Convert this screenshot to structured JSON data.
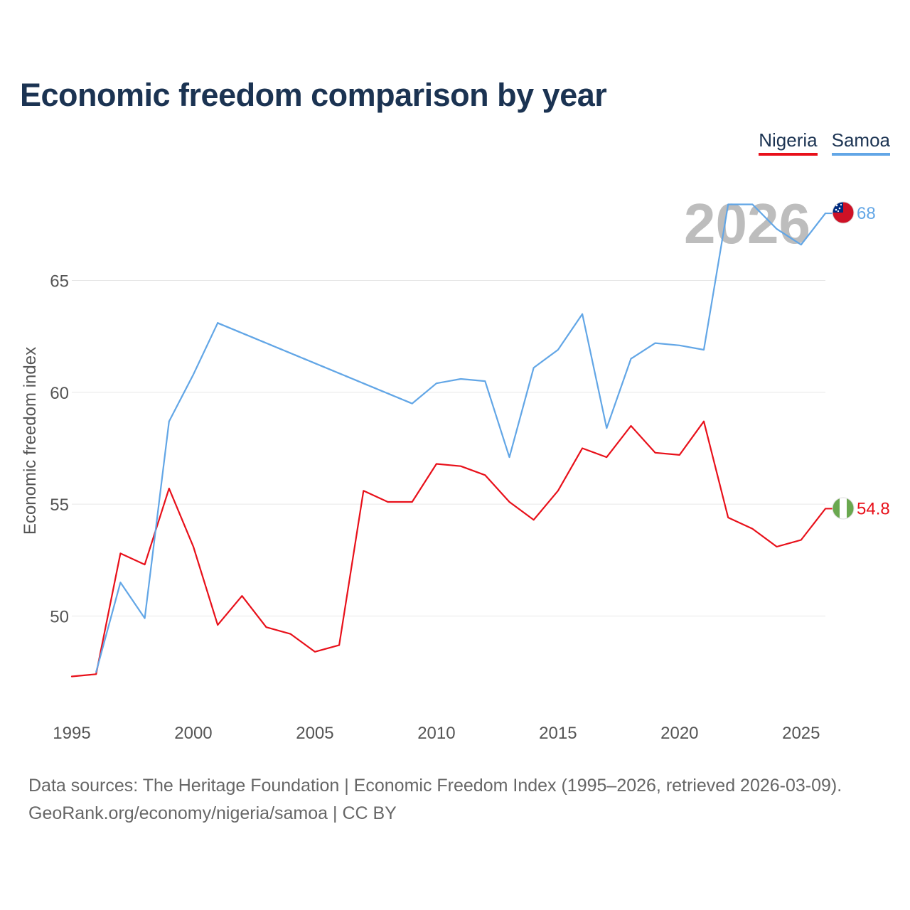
{
  "title": "Economic freedom comparison by year",
  "legend": {
    "nigeria_label": "Nigeria",
    "samoa_label": "Samoa"
  },
  "source": {
    "line1": "Data sources: The Heritage Foundation | Economic Freedom Index (1995–2026, retrieved 2026-03-09).",
    "line2": "GeoRank.org/economy/nigeria/samoa | CC BY"
  },
  "chart_data": {
    "type": "line",
    "title": "Economic freedom comparison by year",
    "xlabel": "",
    "ylabel": "Economic freedom index",
    "xlim": [
      1995,
      2026
    ],
    "ylim": [
      45,
      70
    ],
    "xticks": [
      1995,
      2000,
      2005,
      2010,
      2015,
      2020,
      2025
    ],
    "yticks": [
      50,
      55,
      60,
      65
    ],
    "grid": true,
    "legend_position": "top-right",
    "year_label": "2026",
    "series": [
      {
        "name": "Nigeria",
        "color": "#e8101a",
        "end_label": "54.8",
        "points": [
          [
            1995,
            47.3
          ],
          [
            1996,
            47.4
          ],
          [
            1997,
            52.8
          ],
          [
            1998,
            52.3
          ],
          [
            1999,
            55.7
          ],
          [
            2000,
            53.1
          ],
          [
            2001,
            49.6
          ],
          [
            2002,
            50.9
          ],
          [
            2003,
            49.5
          ],
          [
            2004,
            49.2
          ],
          [
            2005,
            48.4
          ],
          [
            2006,
            48.7
          ],
          [
            2007,
            55.6
          ],
          [
            2008,
            55.1
          ],
          [
            2009,
            55.1
          ],
          [
            2010,
            56.8
          ],
          [
            2011,
            56.7
          ],
          [
            2012,
            56.3
          ],
          [
            2013,
            55.1
          ],
          [
            2014,
            54.3
          ],
          [
            2015,
            55.6
          ],
          [
            2016,
            57.5
          ],
          [
            2017,
            57.1
          ],
          [
            2018,
            58.5
          ],
          [
            2019,
            57.3
          ],
          [
            2020,
            57.2
          ],
          [
            2021,
            58.7
          ],
          [
            2022,
            54.4
          ],
          [
            2023,
            53.9
          ],
          [
            2024,
            53.1
          ],
          [
            2025,
            53.4
          ],
          [
            2026,
            54.8
          ]
        ],
        "gaps": []
      },
      {
        "name": "Samoa",
        "color": "#62a6e6",
        "end_label": "68",
        "points": [
          [
            1996,
            47.5
          ],
          [
            1997,
            51.5
          ],
          [
            1998,
            49.9
          ],
          [
            1999,
            58.7
          ],
          [
            2000,
            60.8
          ],
          [
            2001,
            63.1
          ],
          [
            2009,
            59.5
          ],
          [
            2010,
            60.4
          ],
          [
            2011,
            60.6
          ],
          [
            2012,
            60.5
          ],
          [
            2013,
            57.1
          ],
          [
            2014,
            61.1
          ],
          [
            2015,
            61.9
          ],
          [
            2016,
            63.5
          ],
          [
            2017,
            58.4
          ],
          [
            2018,
            61.5
          ],
          [
            2019,
            62.2
          ],
          [
            2020,
            62.1
          ],
          [
            2021,
            61.9
          ],
          [
            2022,
            68.4
          ],
          [
            2023,
            68.4
          ],
          [
            2024,
            67.3
          ],
          [
            2025,
            66.6
          ],
          [
            2026,
            68.0
          ]
        ],
        "gaps": [
          [
            2001,
            2009
          ]
        ]
      }
    ]
  }
}
